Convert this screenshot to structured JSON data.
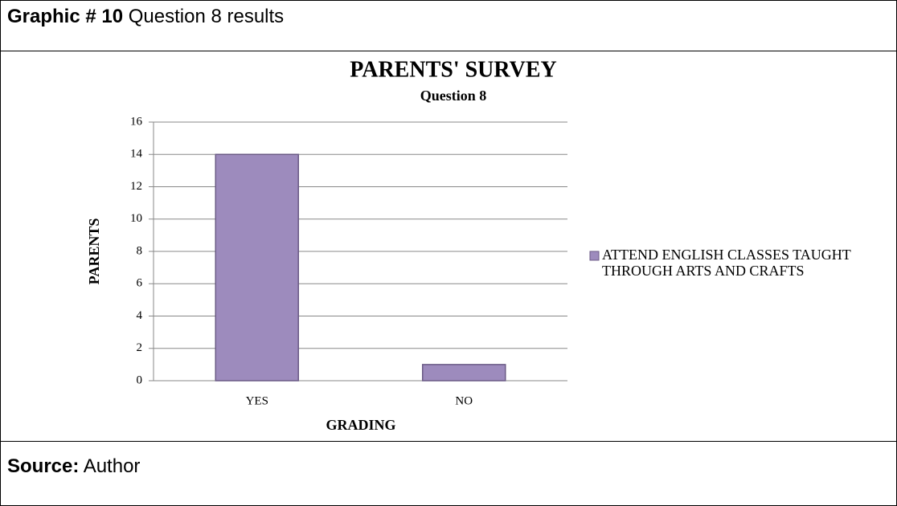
{
  "header": {
    "label": "Graphic # 10",
    "text": "Question 8 results"
  },
  "chart_data": {
    "type": "bar",
    "title": "PARENTS' SURVEY",
    "subtitle": "Question 8",
    "x_label": "GRADING",
    "y_label": "PARENTS",
    "categories": [
      "YES",
      "NO"
    ],
    "series": [
      {
        "name": "ATTEND ENGLISH CLASSES TAUGHT THROUGH ARTS AND CRAFTS",
        "color": "#9d8bbd",
        "values": [
          14,
          1
        ]
      }
    ],
    "ylim": [
      0,
      16
    ],
    "yticks": [
      0,
      2,
      4,
      6,
      8,
      10,
      12,
      14,
      16
    ],
    "grid": true,
    "legend": "right"
  },
  "footer": {
    "label": "Source:",
    "text": "Author"
  }
}
